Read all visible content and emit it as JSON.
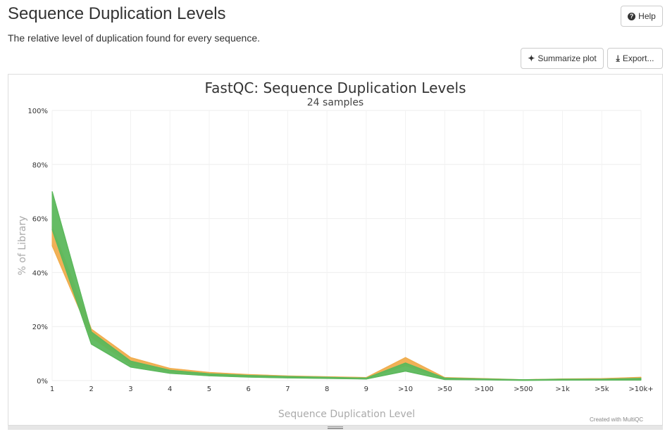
{
  "header": {
    "title": "Sequence Duplication Levels",
    "description": "The relative level of duplication found for every sequence."
  },
  "toolbar": {
    "help_label": "Help",
    "summarize_label": "Summarize plot",
    "export_label": "Export..."
  },
  "icons": {
    "help": "question-circle-icon",
    "summarize": "sparkle-icon",
    "export": "download-icon"
  },
  "credit": "Created with MultiQC",
  "chart_data": {
    "type": "area",
    "title": "FastQC: Sequence Duplication Levels",
    "subtitle": "24 samples",
    "xlabel": "Sequence Duplication Level",
    "ylabel": "% of Library",
    "categories": [
      "1",
      "2",
      "3",
      "4",
      "5",
      "6",
      "7",
      "8",
      "9",
      ">10",
      ">50",
      ">100",
      ">500",
      ">1k",
      ">5k",
      ">10k+"
    ],
    "ylim": [
      0,
      100
    ],
    "yticks": [
      "0%",
      "20%",
      "40%",
      "60%",
      "80%",
      "100%"
    ],
    "ytick_values": [
      0,
      20,
      40,
      60,
      80,
      100
    ],
    "grid": true,
    "series": [
      {
        "color": "#f0ad4e",
        "role": "band-low",
        "values": [
          50.0,
          16.0,
          6.0,
          3.3,
          2.2,
          1.6,
          1.3,
          1.0,
          0.8,
          5.5,
          0.6,
          0.4,
          0.2,
          0.3,
          0.3,
          0.4
        ]
      },
      {
        "color": "#f0ad4e",
        "role": "band-high",
        "values": [
          57.0,
          19.0,
          8.5,
          4.5,
          3.0,
          2.2,
          1.7,
          1.4,
          1.1,
          8.5,
          1.1,
          0.7,
          0.3,
          0.6,
          0.7,
          1.2
        ]
      },
      {
        "color": "#5cb85c",
        "role": "band-low",
        "values": [
          56.0,
          13.5,
          5.0,
          2.7,
          1.8,
          1.3,
          1.0,
          0.8,
          0.6,
          3.5,
          0.4,
          0.3,
          0.1,
          0.2,
          0.2,
          0.2
        ]
      },
      {
        "color": "#5cb85c",
        "role": "band-high",
        "values": [
          70.0,
          18.0,
          7.2,
          3.8,
          2.5,
          1.9,
          1.5,
          1.2,
          0.9,
          6.5,
          0.9,
          0.6,
          0.3,
          0.5,
          0.5,
          0.8
        ]
      }
    ]
  }
}
